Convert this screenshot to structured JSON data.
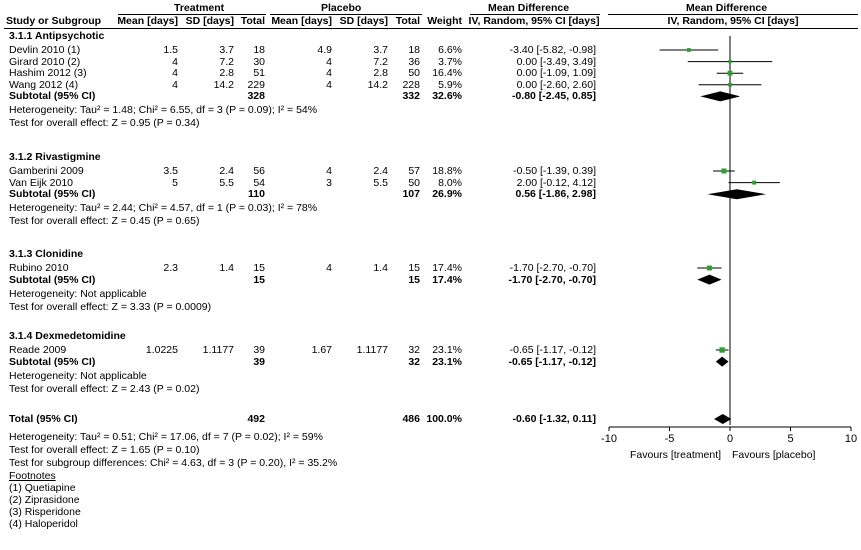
{
  "header": {
    "treatment": "Treatment",
    "placebo": "Placebo",
    "md_title": "Mean Difference",
    "md_title2": "Mean Difference",
    "study_col": "Study or Subgroup",
    "t_mean": "Mean [days]",
    "t_sd": "SD [days]",
    "t_total": "Total",
    "p_mean": "Mean [days]",
    "p_sd": "SD [days]",
    "p_total": "Total",
    "weight": "Weight",
    "ci_col": "IV, Random, 95% CI [days]",
    "ci_col2": "IV, Random, 95% CI [days]"
  },
  "groups": [
    {
      "title": "3.1.1 Antipsychotic",
      "studies": [
        {
          "name": "Devlin 2010 (1)",
          "t_mean": "1.5",
          "t_sd": "3.7",
          "t_total": "18",
          "p_mean": "4.9",
          "p_sd": "3.7",
          "p_total": "18",
          "weight": "6.6%",
          "ci": "-3.40 [-5.82, -0.98]"
        },
        {
          "name": "Girard 2010 (2)",
          "t_mean": "4",
          "t_sd": "7.2",
          "t_total": "30",
          "p_mean": "4",
          "p_sd": "7.2",
          "p_total": "36",
          "weight": "3.7%",
          "ci": "0.00 [-3.49, 3.49]"
        },
        {
          "name": "Hashim 2012 (3)",
          "t_mean": "4",
          "t_sd": "2.8",
          "t_total": "51",
          "p_mean": "4",
          "p_sd": "2.8",
          "p_total": "50",
          "weight": "16.4%",
          "ci": "0.00 [-1.09, 1.09]"
        },
        {
          "name": "Wang 2012 (4)",
          "t_mean": "4",
          "t_sd": "14.2",
          "t_total": "229",
          "p_mean": "4",
          "p_sd": "14.2",
          "p_total": "228",
          "weight": "5.9%",
          "ci": "0.00 [-2.60, 2.60]"
        }
      ],
      "subtotal": {
        "label": "Subtotal (95% CI)",
        "t_total": "328",
        "p_total": "332",
        "weight": "32.6%",
        "ci": "-0.80 [-2.45, 0.85]"
      },
      "notes": [
        "Heterogeneity: Tau² = 1.48; Chi² = 6.55, df = 3 (P = 0.09); I² = 54%",
        "Test for overall effect: Z = 0.95 (P = 0.34)"
      ]
    },
    {
      "title": "3.1.2 Rivastigmine",
      "studies": [
        {
          "name": "Gamberini 2009",
          "t_mean": "3.5",
          "t_sd": "2.4",
          "t_total": "56",
          "p_mean": "4",
          "p_sd": "2.4",
          "p_total": "57",
          "weight": "18.8%",
          "ci": "-0.50 [-1.39, 0.39]"
        },
        {
          "name": "Van Eijk 2010",
          "t_mean": "5",
          "t_sd": "5.5",
          "t_total": "54",
          "p_mean": "3",
          "p_sd": "5.5",
          "p_total": "50",
          "weight": "8.0%",
          "ci": "2.00 [-0.12, 4.12]"
        }
      ],
      "subtotal": {
        "label": "Subtotal (95% CI)",
        "t_total": "110",
        "p_total": "107",
        "weight": "26.9%",
        "ci": "0.56 [-1.86, 2.98]"
      },
      "notes": [
        "Heterogeneity: Tau² = 2.44; Chi² = 4.57, df = 1 (P = 0.03); I² = 78%",
        "Test for overall effect: Z = 0.45 (P = 0.65)"
      ]
    },
    {
      "title": "3.1.3 Clonidine",
      "studies": [
        {
          "name": "Rubino 2010",
          "t_mean": "2.3",
          "t_sd": "1.4",
          "t_total": "15",
          "p_mean": "4",
          "p_sd": "1.4",
          "p_total": "15",
          "weight": "17.4%",
          "ci": "-1.70 [-2.70, -0.70]"
        }
      ],
      "subtotal": {
        "label": "Subtotal (95% CI)",
        "t_total": "15",
        "p_total": "15",
        "weight": "17.4%",
        "ci": "-1.70 [-2.70, -0.70]"
      },
      "notes": [
        "Heterogeneity: Not applicable",
        "Test for overall effect: Z = 3.33 (P = 0.0009)"
      ]
    },
    {
      "title": "3.1.4 Dexmedetomidine",
      "studies": [
        {
          "name": "Reade 2009",
          "t_mean": "1.0225",
          "t_sd": "1.1177",
          "t_total": "39",
          "p_mean": "1.67",
          "p_sd": "1.1177",
          "p_total": "32",
          "weight": "23.1%",
          "ci": "-0.65 [-1.17, -0.12]"
        }
      ],
      "subtotal": {
        "label": "Subtotal (95% CI)",
        "t_total": "39",
        "p_total": "32",
        "weight": "23.1%",
        "ci": "-0.65 [-1.17, -0.12]"
      },
      "notes": [
        "Heterogeneity: Not applicable",
        "Test for overall effect: Z = 2.43 (P = 0.02)"
      ]
    }
  ],
  "total": {
    "label": "Total (95% CI)",
    "t_total": "492",
    "p_total": "486",
    "weight": "100.0%",
    "ci": "-0.60 [-1.32, 0.11]"
  },
  "total_notes": [
    "Heterogeneity: Tau² = 0.51; Chi² = 17.06, df = 7 (P = 0.02); I² = 59%",
    "Test for overall effect: Z = 1.65 (P = 0.10)",
    "Test for subgroup differences: Chi² = 4.63, df = 3 (P = 0.20), I² = 35.2%"
  ],
  "footnotes_title": "Footnotes",
  "footnotes": [
    "(1) Quetiapine",
    "(2) Ziprasidone",
    "(3) Risperidone",
    "(4) Haloperidol"
  ],
  "colors": {
    "study_marker": "#2ca02c",
    "diamond": "#000000",
    "line": "#000000"
  },
  "chart_data": {
    "type": "forest",
    "xlim": [
      -10,
      10
    ],
    "xticks": [
      "-10",
      "-5",
      "0",
      "5",
      "10"
    ],
    "xtick_values": [
      -10,
      -5,
      0,
      5,
      10
    ],
    "x_left_label": "Favours [treatment]",
    "x_right_label": "Favours [placebo]",
    "studies": [
      {
        "name": "Devlin 2010 (1)",
        "md": -3.4,
        "lo": -5.82,
        "hi": -0.98,
        "weight": 6.6
      },
      {
        "name": "Girard 2010 (2)",
        "md": 0.0,
        "lo": -3.49,
        "hi": 3.49,
        "weight": 3.7
      },
      {
        "name": "Hashim 2012 (3)",
        "md": 0.0,
        "lo": -1.09,
        "hi": 1.09,
        "weight": 16.4
      },
      {
        "name": "Wang 2012 (4)",
        "md": 0.0,
        "lo": -2.6,
        "hi": 2.6,
        "weight": 5.9
      },
      {
        "name": "Gamberini 2009",
        "md": -0.5,
        "lo": -1.39,
        "hi": 0.39,
        "weight": 18.8
      },
      {
        "name": "Van Eijk 2010",
        "md": 2.0,
        "lo": -0.12,
        "hi": 4.12,
        "weight": 8.0
      },
      {
        "name": "Rubino 2010",
        "md": -1.7,
        "lo": -2.7,
        "hi": -0.7,
        "weight": 17.4
      },
      {
        "name": "Reade 2009",
        "md": -0.65,
        "lo": -1.17,
        "hi": -0.12,
        "weight": 23.1
      }
    ],
    "subtotals": [
      {
        "name": "3.1.1 Antipsychotic",
        "md": -0.8,
        "lo": -2.45,
        "hi": 0.85
      },
      {
        "name": "3.1.2 Rivastigmine",
        "md": 0.56,
        "lo": -1.86,
        "hi": 2.98
      },
      {
        "name": "3.1.3 Clonidine",
        "md": -1.7,
        "lo": -2.7,
        "hi": -0.7
      },
      {
        "name": "3.1.4 Dexmedetomidine",
        "md": -0.65,
        "lo": -1.17,
        "hi": -0.12
      }
    ],
    "overall": {
      "name": "Total (95% CI)",
      "md": -0.6,
      "lo": -1.32,
      "hi": 0.11
    }
  }
}
